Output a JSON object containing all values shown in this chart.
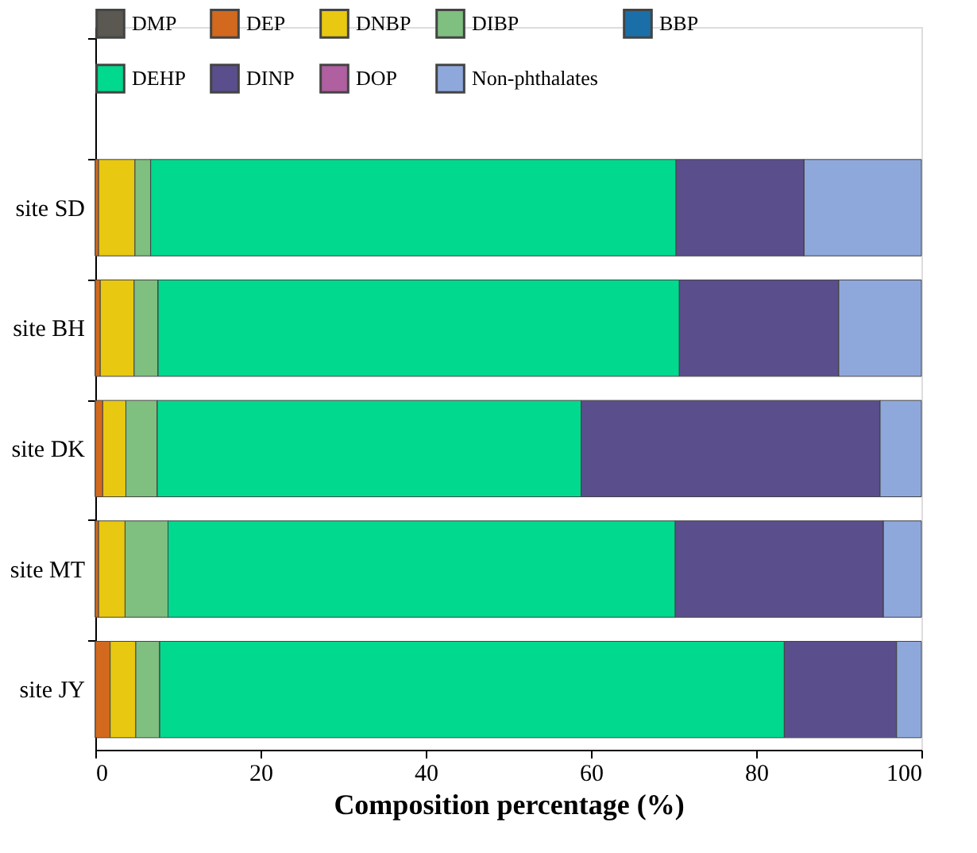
{
  "chart_data": {
    "type": "bar",
    "orientation": "horizontal",
    "stacked": true,
    "xlabel": "Composition percentage (%)",
    "categories": [
      null,
      "site SD",
      "site BH",
      "site DK",
      "site MT",
      "site JY"
    ],
    "series": [
      {
        "name": "DMP",
        "color": "#5a5850",
        "values": [
          null,
          0,
          0,
          0,
          0,
          0
        ]
      },
      {
        "name": "DEP",
        "color": "#d2691e",
        "values": [
          null,
          0.4,
          0.6,
          0.9,
          0.4,
          1.8
        ]
      },
      {
        "name": "DNBP",
        "color": "#e8c810",
        "values": [
          null,
          4.4,
          4.1,
          2.8,
          3.2,
          3.1
        ]
      },
      {
        "name": "DIBP",
        "color": "#7fbf7f",
        "values": [
          null,
          1.9,
          2.9,
          3.8,
          5.2,
          2.9
        ]
      },
      {
        "name": "BBP",
        "color": "#1a6fa8",
        "values": [
          null,
          0,
          0,
          0,
          0,
          0
        ]
      },
      {
        "name": "DEHP",
        "color": "#00d98e",
        "values": [
          null,
          63.6,
          63.1,
          51.3,
          61.4,
          75.6
        ]
      },
      {
        "name": "DINP",
        "color": "#5a4e8c",
        "values": [
          null,
          15.5,
          19.3,
          36.2,
          25.2,
          13.6
        ]
      },
      {
        "name": "DOP",
        "color": "#b05fa0",
        "values": [
          null,
          0,
          0,
          0,
          0,
          0
        ]
      },
      {
        "name": "Non-phthalates",
        "color": "#8fa8dc",
        "values": [
          null,
          14.2,
          10.0,
          5.0,
          4.6,
          3.0
        ]
      }
    ],
    "xlim": [
      0,
      100
    ],
    "xticks": [
      0,
      20,
      40,
      60,
      80,
      100
    ],
    "grid": false,
    "legend": "top"
  }
}
